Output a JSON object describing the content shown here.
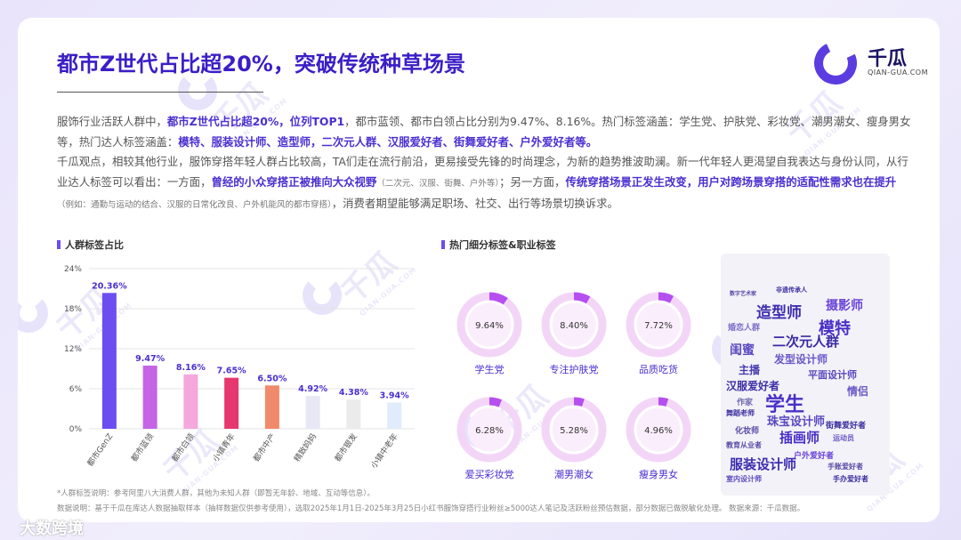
{
  "title": "都市Z世代占比超20%，突破传统种草场景",
  "logo": {
    "name": "千瓜",
    "url": "QIAN-GUA.COM",
    "icon": "qiangua-logo-icon"
  },
  "watermark": {
    "text": "千瓜",
    "sub": "QIAN-GUA.COM"
  },
  "body": {
    "p1_a": "服饰行业活跃人群中，",
    "p1_hl1": "都市Z世代占比超20%，位列TOP1",
    "p1_b": "，都市蓝领、都市白领占比分别为9.47%、8.16%。热门标签涵盖：学生党、护肤党、彩妆党、潮男潮女、瘦身男女等，热门达人标签涵盖：",
    "p1_hl2": "模特、服装设计师、造型师，二次元人群、汉服爱好者、街舞爱好者、户外爱好者等。",
    "p2_a": "千瓜观点，相较其他行业，服饰穿搭年轻人群占比较高，TA们走在流行前沿，更易接受先锋的时尚理念，为新的趋势推波助澜。新一代年轻人更渴望自我表达与身份认同，从行业达人标签可以看出：一方面，",
    "p2_hl1": "曾经的小众穿搭正被推向大众视野",
    "p2_small1": "（二次元、汉服、街舞、户外等）",
    "p2_b": "；另一方面，",
    "p2_hl2": "传统穿搭场景正发生改变，用户对跨场景穿搭的适配性需求也在提升",
    "p2_small2": "（例如：通勤与运动的结合、汉服的日常化改良、户外机能风的都市穿搭）",
    "p2_c": "，消费者期望能够满足职场、社交、出行等场景切换诉求。"
  },
  "left_section_title": "人群标签占比",
  "right_section_title": "热门细分标签&职业标签",
  "chart_data": [
    {
      "type": "bar",
      "title": "人群标签占比",
      "categories": [
        "都市GenZ",
        "都市蓝领",
        "都市白领",
        "小镇青年",
        "都市中产",
        "精致妈妈",
        "都市银发",
        "小镇中老年"
      ],
      "values": [
        20.36,
        9.47,
        8.16,
        7.65,
        6.5,
        4.92,
        4.38,
        3.94
      ],
      "value_labels": [
        "20.36%",
        "9.47%",
        "8.16%",
        "7.65%",
        "6.50%",
        "4.92%",
        "4.38%",
        "3.94%"
      ],
      "colors": [
        "#6c4ef0",
        "#c565e6",
        "#f5a8dc",
        "#e6376f",
        "#f08a6b",
        "#e8e7f5",
        "#ebebeb",
        "#e0ecfb"
      ],
      "yticks": [
        "0%",
        "6%",
        "12%",
        "18%",
        "24%"
      ],
      "ylim": [
        0,
        24
      ],
      "xlabel": "",
      "ylabel": ""
    },
    {
      "type": "pie",
      "title": "热门细分标签",
      "labels": [
        "学生党",
        "专注护肤党",
        "品质吃货",
        "爱买彩妆党",
        "潮男潮女",
        "瘦身男女"
      ],
      "values": [
        9.64,
        8.4,
        7.72,
        6.28,
        5.28,
        4.96
      ],
      "value_labels": [
        "9.64%",
        "8.40%",
        "7.72%",
        "6.28%",
        "5.28%",
        "4.96%"
      ],
      "accent": "#b64ff0",
      "track": "#f3d6f7"
    }
  ],
  "word_cloud": [
    {
      "text": "数字艺术家",
      "size": 6,
      "color": "#5a4aa8"
    },
    {
      "text": "非遗传承人",
      "size": 7,
      "color": "#3b2fa0"
    },
    {
      "text": "造型师",
      "size": 17,
      "color": "#3d2db0"
    },
    {
      "text": "摄影师",
      "size": 14,
      "color": "#6a45d8"
    },
    {
      "text": "模特",
      "size": 18,
      "color": "#4a2fc8"
    },
    {
      "text": "婚恋人群",
      "size": 9,
      "color": "#7b6cc8"
    },
    {
      "text": "二次元人群",
      "size": 15,
      "color": "#3b2aa5"
    },
    {
      "text": "闺蜜",
      "size": 14,
      "color": "#5b49c0"
    },
    {
      "text": "发型设计师",
      "size": 12,
      "color": "#6a57c8"
    },
    {
      "text": "主播",
      "size": 12,
      "color": "#4a3db0"
    },
    {
      "text": "平面设计师",
      "size": 11,
      "color": "#5b48c0"
    },
    {
      "text": "汉服爱好者",
      "size": 12,
      "color": "#3d2fa8"
    },
    {
      "text": "情侣",
      "size": 12,
      "color": "#6a57c8"
    },
    {
      "text": "学生",
      "size": 22,
      "color": "#4a2fc8"
    },
    {
      "text": "作家",
      "size": 9,
      "color": "#6f6ab0"
    },
    {
      "text": "舞蹈老师",
      "size": 8,
      "color": "#3b2fa0"
    },
    {
      "text": "珠宝设计师",
      "size": 13,
      "color": "#5b49c0"
    },
    {
      "text": "街舞爱好者",
      "size": 9,
      "color": "#3b2fa0"
    },
    {
      "text": "化妆师",
      "size": 9,
      "color": "#5a4aa8"
    },
    {
      "text": "插画师",
      "size": 15,
      "color": "#4a2fc8"
    },
    {
      "text": "运动员",
      "size": 8,
      "color": "#6a57c8"
    },
    {
      "text": "教育从业者",
      "size": 8,
      "color": "#5a4aa8"
    },
    {
      "text": "户外爱好者",
      "size": 9,
      "color": "#6a45d8"
    },
    {
      "text": "服装设计师",
      "size": 15,
      "color": "#3d2db0"
    },
    {
      "text": "手账爱好者",
      "size": 8,
      "color": "#5a4aa8"
    },
    {
      "text": "室内设计师",
      "size": 8,
      "color": "#5b49c0"
    },
    {
      "text": "手办爱好者",
      "size": 8,
      "color": "#3b2fa0"
    }
  ],
  "footnotes": {
    "n1": "*人群标签说明：参考阿里八大消费人群，其他为未知人群（即暂无年龄、地域、互动等信息）。",
    "n2": "数据说明：基于千瓜在库达人数据抽取样本（抽样数据仅供参考使用），选取2025年1月1日-2025年3月25日小红书服饰穿搭行业粉丝≥5000达人笔记及活跃粉丝预估数据，部分数据已做脱敏化处理。 数据来源：千瓜数据。"
  },
  "brand_bottom": "大数跨境"
}
